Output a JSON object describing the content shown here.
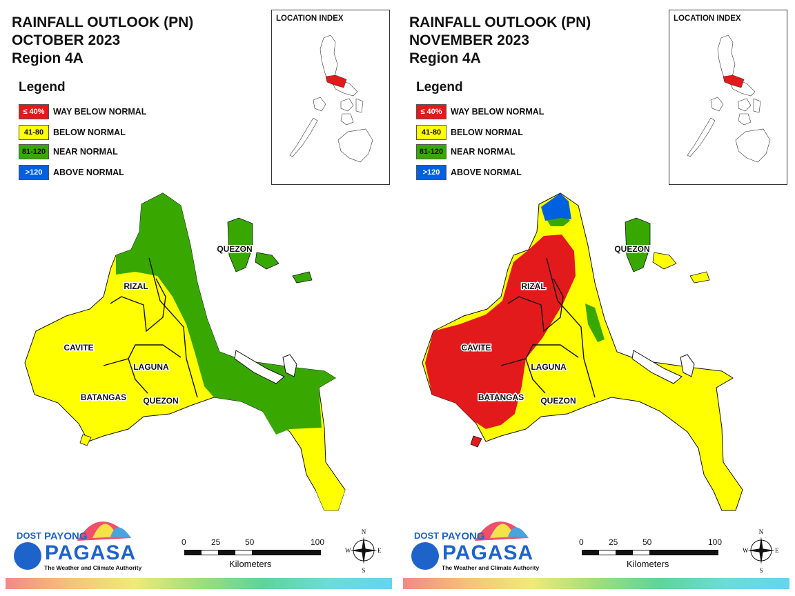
{
  "panels": [
    {
      "title_line1": "RAINFALL OUTLOOK (PN)",
      "title_line2": "OCTOBER 2023",
      "title_line3": "Region 4A",
      "province_labels": {
        "quezon_north": "QUEZON",
        "rizal": "RIZAL",
        "cavite": "CAVITE",
        "laguna": "LAGUNA",
        "batangas": "BATANGAS",
        "quezon_south": "QUEZON"
      }
    },
    {
      "title_line1": "RAINFALL OUTLOOK (PN)",
      "title_line2": "NOVEMBER 2023",
      "title_line3": "Region 4A",
      "province_labels": {
        "quezon_north": "QUEZON",
        "rizal": "RIZAL",
        "cavite": "CAVITE",
        "laguna": "LAGUNA",
        "batangas": "BATANGAS",
        "quezon_south": "QUEZON"
      }
    }
  ],
  "legend": {
    "title": "Legend",
    "items": [
      {
        "range": "≤ 40%",
        "label": "WAY BELOW NORMAL",
        "color": "#e31a1c"
      },
      {
        "range": "41-80",
        "label": "BELOW NORMAL",
        "color": "#ffff00"
      },
      {
        "range": "81-120",
        "label": "NEAR NORMAL",
        "color": "#38a800"
      },
      {
        "range": ">120",
        "label": "ABOVE NORMAL",
        "color": "#0060e0"
      }
    ]
  },
  "location_index": {
    "title": "LOCATION INDEX",
    "highlight_color": "#e31a1c"
  },
  "scale_bar": {
    "ticks": [
      "0",
      "25",
      "50",
      "100"
    ],
    "unit": "Kilometers"
  },
  "compass": {
    "n": "N",
    "s": "S",
    "e": "E",
    "w": "W"
  },
  "logo": {
    "dost": "DOST",
    "payong": "PAYONG",
    "pagasa": "PAGASA",
    "tagline": "The Weather and Climate Authority"
  },
  "colors": {
    "yellow": "#ffff00",
    "green": "#38a800",
    "red": "#e31a1c",
    "blue": "#0060e0"
  }
}
